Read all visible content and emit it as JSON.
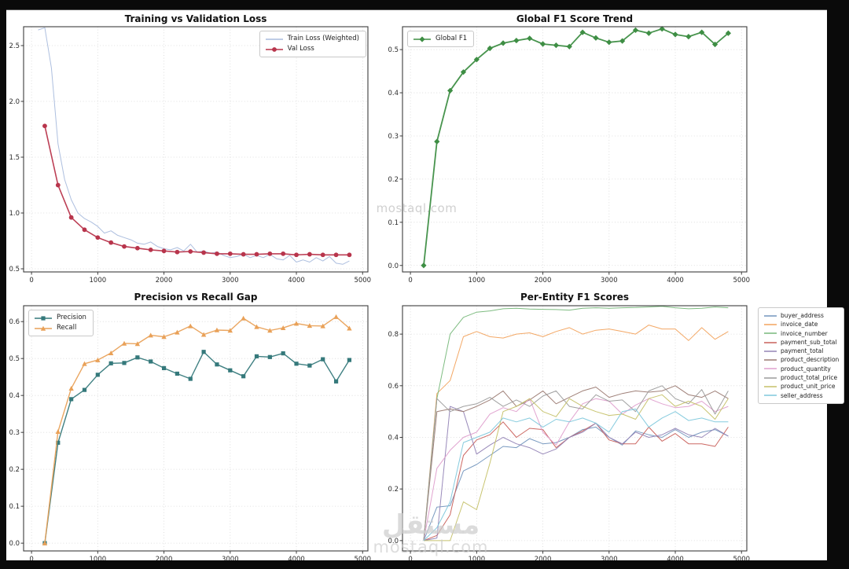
{
  "watermarks": {
    "center": "mostaql.com",
    "bottom_logo": "مستقل",
    "bottom_url": "mostaql.com"
  },
  "chart_data": [
    {
      "type": "line",
      "title": "Training vs Validation Loss",
      "xlabel": "",
      "ylabel": "",
      "xlim": [
        -120,
        5080
      ],
      "ylim": [
        0.472,
        2.669
      ],
      "xticks": [
        0,
        1000,
        2000,
        3000,
        4000,
        5000
      ],
      "xtick_labels": [
        "0",
        "1000",
        "2000",
        "3000",
        "4000",
        "5000"
      ],
      "yticks": [
        0.5,
        1.0,
        1.5,
        2.0,
        2.5
      ],
      "ytick_labels": [
        "0.5",
        "1.0",
        "1.5",
        "2.0",
        "2.5"
      ],
      "grid": true,
      "legend_position": "inside-top-right",
      "x": [
        200,
        400,
        600,
        800,
        1000,
        1200,
        1400,
        1600,
        1800,
        2000,
        2200,
        2400,
        2600,
        2800,
        3000,
        3200,
        3400,
        3600,
        3800,
        4000,
        4200,
        4400,
        4600,
        4800
      ],
      "series": [
        {
          "name": "Train Loss (Weighted)",
          "color": "#a9bcdd",
          "marker": "none",
          "width": 1,
          "x": [
            100,
            200,
            300,
            400,
            500,
            600,
            700,
            800,
            900,
            1000,
            1100,
            1200,
            1300,
            1400,
            1500,
            1600,
            1700,
            1800,
            1900,
            2000,
            2100,
            2200,
            2300,
            2400,
            2500,
            2600,
            2700,
            2800,
            2900,
            3000,
            3100,
            3200,
            3300,
            3400,
            3500,
            3600,
            3700,
            3800,
            3900,
            4000,
            4100,
            4200,
            4300,
            4400,
            4500,
            4600,
            4700,
            4800
          ],
          "values": [
            2.64,
            2.66,
            2.3,
            1.62,
            1.3,
            1.12,
            1.0,
            0.95,
            0.92,
            0.88,
            0.82,
            0.84,
            0.8,
            0.78,
            0.76,
            0.73,
            0.72,
            0.74,
            0.7,
            0.68,
            0.67,
            0.69,
            0.66,
            0.72,
            0.65,
            0.66,
            0.64,
            0.65,
            0.62,
            0.6,
            0.61,
            0.63,
            0.6,
            0.62,
            0.6,
            0.63,
            0.59,
            0.58,
            0.62,
            0.56,
            0.58,
            0.56,
            0.6,
            0.57,
            0.61,
            0.55,
            0.54,
            0.57
          ]
        },
        {
          "name": "Val Loss",
          "color": "#b8354c",
          "marker": "circle",
          "width": 1.6,
          "values": [
            1.78,
            1.25,
            0.96,
            0.85,
            0.78,
            0.735,
            0.7,
            0.685,
            0.67,
            0.66,
            0.65,
            0.655,
            0.645,
            0.635,
            0.635,
            0.63,
            0.63,
            0.635,
            0.635,
            0.625,
            0.63,
            0.625,
            0.625,
            0.625
          ]
        }
      ]
    },
    {
      "type": "line",
      "title": "Global F1 Score Trend",
      "xlabel": "",
      "ylabel": "",
      "xlim": [
        -120,
        5080
      ],
      "ylim": [
        -0.015,
        0.553
      ],
      "xticks": [
        0,
        1000,
        2000,
        3000,
        4000,
        5000
      ],
      "xtick_labels": [
        "0",
        "1000",
        "2000",
        "3000",
        "4000",
        "5000"
      ],
      "yticks": [
        0.0,
        0.1,
        0.2,
        0.3,
        0.4,
        0.5
      ],
      "ytick_labels": [
        "0.0",
        "0.1",
        "0.2",
        "0.3",
        "0.4",
        "0.5"
      ],
      "grid": true,
      "legend_position": "inside-top-left",
      "x": [
        200,
        400,
        600,
        800,
        1000,
        1200,
        1400,
        1600,
        1800,
        2000,
        2200,
        2400,
        2600,
        2800,
        3000,
        3200,
        3400,
        3600,
        3800,
        4000,
        4200,
        4400,
        4600,
        4800
      ],
      "series": [
        {
          "name": "Global F1",
          "color": "#3e8e44",
          "marker": "diamond",
          "width": 1.8,
          "values": [
            0.0,
            0.287,
            0.405,
            0.448,
            0.477,
            0.503,
            0.515,
            0.521,
            0.526,
            0.513,
            0.51,
            0.507,
            0.54,
            0.527,
            0.517,
            0.52,
            0.545,
            0.538,
            0.548,
            0.535,
            0.53,
            0.54,
            0.512,
            0.538
          ]
        }
      ]
    },
    {
      "type": "line",
      "title": "Precision vs Recall Gap",
      "xlabel": "",
      "ylabel": "",
      "xlim": [
        -120,
        5080
      ],
      "ylim": [
        -0.021,
        0.643
      ],
      "xticks": [
        0,
        1000,
        2000,
        3000,
        4000,
        5000
      ],
      "xtick_labels": [
        "0",
        "1000",
        "2000",
        "3000",
        "4000",
        "5000"
      ],
      "yticks": [
        0.0,
        0.1,
        0.2,
        0.3,
        0.4,
        0.5,
        0.6
      ],
      "ytick_labels": [
        "0.0",
        "0.1",
        "0.2",
        "0.3",
        "0.4",
        "0.5",
        "0.6"
      ],
      "grid": true,
      "legend_position": "inside-top-left",
      "x": [
        200,
        400,
        600,
        800,
        1000,
        1200,
        1400,
        1600,
        1800,
        2000,
        2200,
        2400,
        2600,
        2800,
        3000,
        3200,
        3400,
        3600,
        3800,
        4000,
        4200,
        4400,
        4600,
        4800
      ],
      "series": [
        {
          "name": "Precision",
          "color": "#35797b",
          "marker": "square",
          "width": 1.4,
          "values": [
            0.0,
            0.272,
            0.39,
            0.415,
            0.456,
            0.487,
            0.488,
            0.503,
            0.492,
            0.474,
            0.459,
            0.445,
            0.518,
            0.484,
            0.468,
            0.452,
            0.506,
            0.504,
            0.514,
            0.486,
            0.481,
            0.498,
            0.438,
            0.496
          ]
        },
        {
          "name": "Recall",
          "color": "#e9a158",
          "marker": "triangle",
          "width": 1.4,
          "values": [
            0.0,
            0.302,
            0.419,
            0.486,
            0.496,
            0.515,
            0.541,
            0.54,
            0.563,
            0.559,
            0.571,
            0.588,
            0.565,
            0.577,
            0.576,
            0.609,
            0.586,
            0.576,
            0.583,
            0.595,
            0.589,
            0.588,
            0.613,
            0.582
          ]
        }
      ]
    },
    {
      "type": "line",
      "title": "Per-Entity F1 Scores",
      "xlabel": "",
      "ylabel": "",
      "xlim": [
        -120,
        5080
      ],
      "ylim": [
        -0.04,
        0.91
      ],
      "xticks": [
        0,
        1000,
        2000,
        3000,
        4000,
        5000
      ],
      "xtick_labels": [
        "0",
        "1000",
        "2000",
        "3000",
        "4000",
        "5000"
      ],
      "yticks": [
        0.0,
        0.2,
        0.4,
        0.6,
        0.8
      ],
      "ytick_labels": [
        "0.0",
        "0.2",
        "0.4",
        "0.6",
        "0.8"
      ],
      "grid": true,
      "legend_position": "outside-right",
      "x": [
        200,
        400,
        600,
        800,
        1000,
        1200,
        1400,
        1600,
        1800,
        2000,
        2200,
        2400,
        2600,
        2800,
        3000,
        3200,
        3400,
        3600,
        3800,
        4000,
        4200,
        4400,
        4600,
        4800
      ],
      "series": [
        {
          "name": "buyer_address",
          "color": "#7295bd",
          "marker": "none",
          "width": 1,
          "values": [
            0,
            0.13,
            0.135,
            0.27,
            0.295,
            0.33,
            0.365,
            0.36,
            0.395,
            0.375,
            0.38,
            0.4,
            0.43,
            0.44,
            0.4,
            0.37,
            0.425,
            0.41,
            0.4,
            0.43,
            0.4,
            0.42,
            0.43,
            0.405
          ]
        },
        {
          "name": "invoice_date",
          "color": "#f2a35e",
          "marker": "none",
          "width": 1,
          "values": [
            0,
            0.57,
            0.62,
            0.79,
            0.81,
            0.79,
            0.785,
            0.8,
            0.805,
            0.79,
            0.81,
            0.825,
            0.8,
            0.815,
            0.82,
            0.81,
            0.8,
            0.835,
            0.82,
            0.82,
            0.775,
            0.825,
            0.78,
            0.81
          ]
        },
        {
          "name": "invoice_number",
          "color": "#77b87a",
          "marker": "none",
          "width": 1,
          "values": [
            0,
            0.55,
            0.8,
            0.865,
            0.885,
            0.89,
            0.898,
            0.9,
            0.897,
            0.896,
            0.895,
            0.893,
            0.9,
            0.902,
            0.9,
            0.902,
            0.903,
            0.905,
            0.908,
            0.902,
            0.898,
            0.9,
            0.905,
            0.902
          ]
        },
        {
          "name": "payment_sub_total",
          "color": "#c9605b",
          "marker": "none",
          "width": 1,
          "values": [
            0,
            0.02,
            0.1,
            0.33,
            0.39,
            0.41,
            0.46,
            0.4,
            0.435,
            0.43,
            0.36,
            0.4,
            0.425,
            0.455,
            0.39,
            0.375,
            0.375,
            0.44,
            0.385,
            0.415,
            0.375,
            0.375,
            0.365,
            0.44
          ]
        },
        {
          "name": "payment_total",
          "color": "#9484b6",
          "marker": "none",
          "width": 1,
          "values": [
            0,
            0.01,
            0.52,
            0.5,
            0.335,
            0.37,
            0.4,
            0.375,
            0.36,
            0.335,
            0.355,
            0.4,
            0.42,
            0.455,
            0.4,
            0.375,
            0.42,
            0.4,
            0.41,
            0.435,
            0.41,
            0.4,
            0.435,
            0.405
          ]
        },
        {
          "name": "product_description",
          "color": "#9b7a72",
          "marker": "none",
          "width": 1,
          "values": [
            0,
            0.5,
            0.51,
            0.5,
            0.52,
            0.545,
            0.58,
            0.52,
            0.545,
            0.58,
            0.53,
            0.555,
            0.58,
            0.595,
            0.555,
            0.57,
            0.58,
            0.575,
            0.58,
            0.6,
            0.565,
            0.555,
            0.58,
            0.55
          ]
        },
        {
          "name": "product_quantity",
          "color": "#df9fce",
          "marker": "none",
          "width": 1,
          "values": [
            0,
            0.28,
            0.35,
            0.4,
            0.42,
            0.49,
            0.515,
            0.5,
            0.55,
            0.42,
            0.37,
            0.46,
            0.53,
            0.55,
            0.54,
            0.49,
            0.525,
            0.55,
            0.53,
            0.515,
            0.52,
            0.54,
            0.5,
            0.52
          ]
        },
        {
          "name": "product_total_price",
          "color": "#9b9b9b",
          "marker": "none",
          "width": 1,
          "values": [
            0,
            0.55,
            0.5,
            0.52,
            0.53,
            0.555,
            0.52,
            0.545,
            0.52,
            0.56,
            0.58,
            0.52,
            0.51,
            0.565,
            0.54,
            0.545,
            0.5,
            0.58,
            0.6,
            0.55,
            0.53,
            0.585,
            0.49,
            0.58
          ]
        },
        {
          "name": "product_unit_price",
          "color": "#c5c168",
          "marker": "none",
          "width": 1,
          "values": [
            0,
            0,
            0,
            0.15,
            0.12,
            0.3,
            0.5,
            0.52,
            0.55,
            0.5,
            0.48,
            0.55,
            0.52,
            0.5,
            0.485,
            0.49,
            0.47,
            0.55,
            0.565,
            0.52,
            0.54,
            0.52,
            0.47,
            0.55
          ]
        },
        {
          "name": "seller_address",
          "color": "#7fc8dc",
          "marker": "none",
          "width": 1,
          "values": [
            0,
            0.05,
            0.15,
            0.38,
            0.4,
            0.42,
            0.475,
            0.46,
            0.475,
            0.44,
            0.47,
            0.46,
            0.475,
            0.455,
            0.42,
            0.5,
            0.51,
            0.44,
            0.475,
            0.5,
            0.465,
            0.475,
            0.46,
            0.46
          ]
        }
      ]
    }
  ]
}
